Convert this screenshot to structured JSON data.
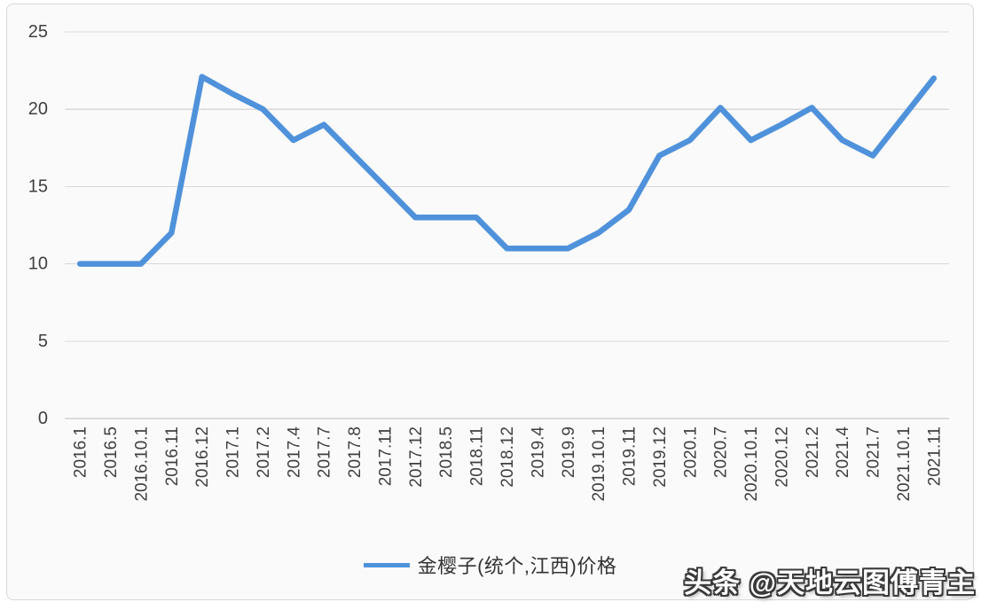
{
  "chart_data": {
    "type": "line",
    "title": "",
    "legend": "金樱子(统个,江西)价格",
    "legend_position": "bottom",
    "grid": "horizontal",
    "ylim": [
      0,
      25
    ],
    "y_ticks": [
      25,
      20,
      15,
      10,
      5,
      0
    ],
    "categories": [
      "2016.1",
      "2016.5",
      "2016.10.1",
      "2016.11",
      "2016.12",
      "2017.1",
      "2017.2",
      "2017.4",
      "2017.7",
      "2017.8",
      "2017.11",
      "2017.12",
      "2018.5",
      "2018.11",
      "2018.12",
      "2019.4",
      "2019.9",
      "2019.10.1",
      "2019.11",
      "2019.12",
      "2020.1",
      "2020.7",
      "2020.10.1",
      "2020.12",
      "2021.2",
      "2021.4",
      "2021.7",
      "2021.10.1",
      "2021.11"
    ],
    "series": [
      {
        "name": "金樱子(统个,江西)价格",
        "color": "#4f92db",
        "values": [
          10,
          10,
          10,
          12,
          22.1,
          21,
          20,
          18,
          19,
          17,
          15,
          13,
          13,
          13,
          11,
          11,
          11,
          12,
          13.5,
          17,
          18,
          20.1,
          18,
          19,
          20.1,
          18,
          17,
          19.5,
          22
        ]
      }
    ],
    "colors": {
      "gridline": "#d9d9d9",
      "axis_line": "#bdbdbd",
      "tick_label": "#3f3f3f",
      "card_background": "#fbfafa",
      "card_border": "#d8d8d8"
    }
  },
  "watermark": {
    "text": "头条 @天地云图傅青主"
  }
}
